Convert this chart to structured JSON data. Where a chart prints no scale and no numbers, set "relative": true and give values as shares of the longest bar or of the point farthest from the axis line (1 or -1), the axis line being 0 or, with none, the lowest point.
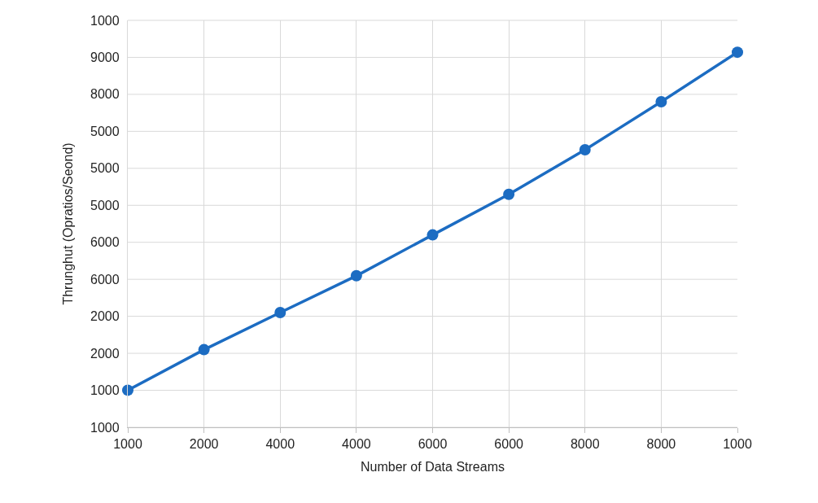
{
  "chart_data": {
    "type": "line",
    "xlabel": "Number of Data Streams",
    "ylabel": "Thrunghut (Opratios/Seond)",
    "categories": [
      "1000",
      "2000",
      "4000",
      "4000",
      "6000",
      "6000",
      "8000",
      "8000",
      "1000"
    ],
    "relative": true,
    "series": [
      {
        "color": "#1c6cc2",
        "values": [
          0.099,
          0.207,
          0.306,
          0.404,
          0.513,
          0.621,
          0.74,
          0.868,
          1
        ]
      }
    ],
    "annotations": [
      "1000",
      "1000",
      "2000",
      "2000",
      "6000",
      "6000",
      "5000",
      "5000",
      "5000",
      "8000",
      "9000",
      "1000"
    ],
    "grid": true,
    "marker": "circle",
    "line_style": "solid"
  }
}
